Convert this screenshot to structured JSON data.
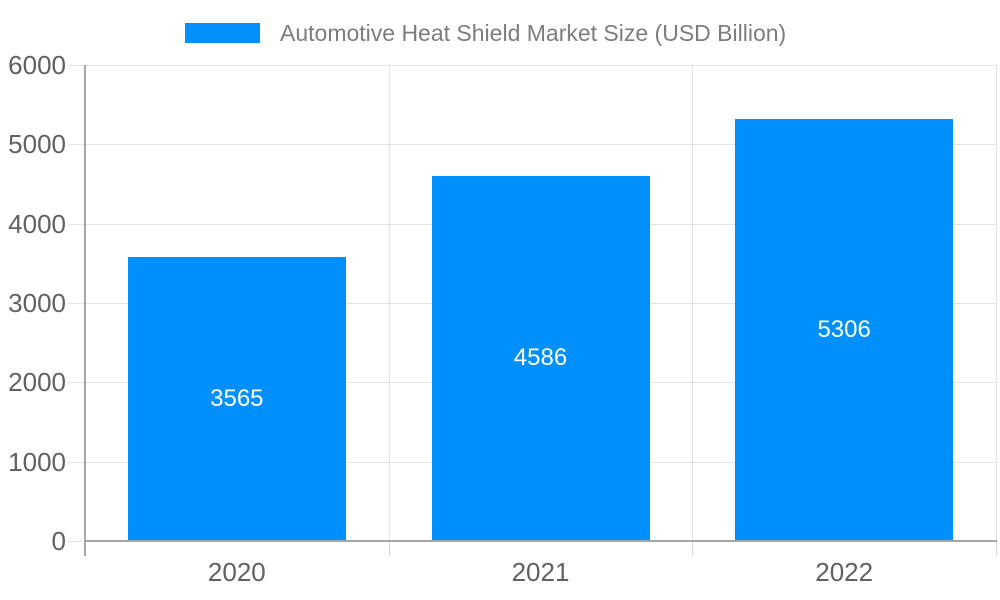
{
  "chart_data": {
    "type": "bar",
    "categories": [
      "2020",
      "2021",
      "2022"
    ],
    "series": [
      {
        "name": "Automotive Heat Shield Market Size (USD Billion)",
        "values": [
          3565,
          4586,
          5306
        ],
        "color": "#008FFB"
      }
    ],
    "value_labels": [
      "3565",
      "4586",
      "5306"
    ],
    "yticks": [
      "0",
      "1000",
      "2000",
      "3000",
      "4000",
      "5000",
      "6000"
    ],
    "ylim": [
      0,
      6000
    ],
    "legend_position": "top",
    "grid": true,
    "xlabel": "",
    "ylabel": ""
  },
  "legend": {
    "label": "Automotive Heat Shield Market Size (USD Billion)"
  },
  "colors": {
    "bar": "#008FFB",
    "legend_text": "#7d7d7d",
    "axis_text": "#616161",
    "value_text": "#ffffff",
    "gridline": "#e4e4e4",
    "axis_line": "#a6a6a6",
    "background": "#ffffff"
  }
}
